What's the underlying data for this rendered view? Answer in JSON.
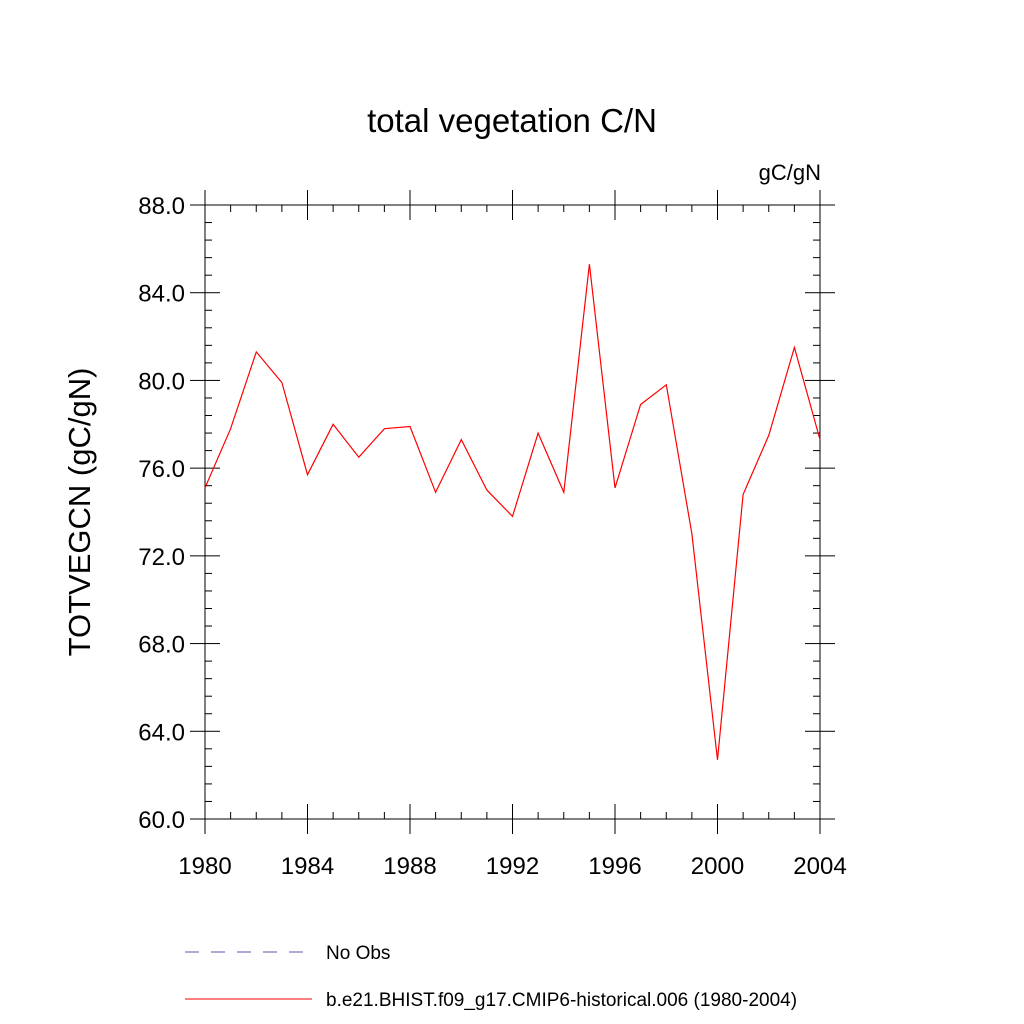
{
  "chart_data": {
    "type": "line",
    "title": "total vegetation C/N",
    "units": "gC/gN",
    "ylabel": "TOTVEGCN  (gC/gN)",
    "xlabel": "",
    "xlim": [
      1980,
      2004
    ],
    "ylim": [
      60,
      88
    ],
    "x_ticks": [
      1980,
      1984,
      1988,
      1992,
      1996,
      2000,
      2004
    ],
    "x_tick_labels": [
      "1980",
      "1984",
      "1988",
      "1992",
      "1996",
      "2000",
      "2004"
    ],
    "y_ticks": [
      60,
      64,
      68,
      72,
      76,
      80,
      84,
      88
    ],
    "y_tick_labels": [
      "60.0",
      "64.0",
      "68.0",
      "72.0",
      "76.0",
      "80.0",
      "84.0",
      "88.0"
    ],
    "grid": false,
    "legend_position": "bottom",
    "series": [
      {
        "name": "b.e21.BHIST.f09_g17.CMIP6-historical.006 (1980-2004)",
        "color": "#ff0000",
        "style": "solid",
        "x": [
          1980,
          1981,
          1982,
          1983,
          1984,
          1985,
          1986,
          1987,
          1988,
          1989,
          1990,
          1991,
          1992,
          1993,
          1994,
          1995,
          1996,
          1997,
          1998,
          1999,
          2000,
          2001,
          2002,
          2003,
          2004
        ],
        "values": [
          75.1,
          77.8,
          81.3,
          79.9,
          75.7,
          78.0,
          76.5,
          77.8,
          77.9,
          74.9,
          77.3,
          75.0,
          73.8,
          77.6,
          74.9,
          85.3,
          75.1,
          78.9,
          79.8,
          73.0,
          62.7,
          74.8,
          77.5,
          81.5,
          77.3
        ]
      }
    ],
    "legend": [
      {
        "label": "No Obs",
        "color": "#5555aa",
        "style": "dashed"
      },
      {
        "label": "b.e21.BHIST.f09_g17.CMIP6-historical.006 (1980-2004)",
        "color": "#ff0000",
        "style": "solid"
      }
    ]
  }
}
